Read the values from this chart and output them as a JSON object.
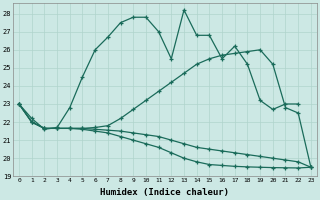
{
  "xlabel": "Humidex (Indice chaleur)",
  "bg_color": "#cce8e4",
  "line_color": "#1a6b5a",
  "grid_color": "#b0d4cc",
  "xlim": [
    -0.5,
    23.5
  ],
  "ylim": [
    19,
    28.6
  ],
  "yticks": [
    19,
    20,
    21,
    22,
    23,
    24,
    25,
    26,
    27,
    28
  ],
  "xticks": [
    0,
    1,
    2,
    3,
    4,
    5,
    6,
    7,
    8,
    9,
    10,
    11,
    12,
    13,
    14,
    15,
    16,
    17,
    18,
    19,
    20,
    21,
    22,
    23
  ],
  "line1_x": [
    0,
    1,
    2,
    3,
    4,
    5,
    6,
    7,
    8,
    9,
    10,
    11,
    12,
    13,
    14,
    15,
    16,
    17,
    18,
    19,
    20,
    21,
    22
  ],
  "line1_y": [
    23.0,
    22.2,
    21.6,
    21.7,
    22.8,
    24.5,
    26.0,
    26.7,
    27.5,
    27.8,
    27.8,
    27.0,
    25.5,
    28.2,
    26.8,
    26.8,
    25.5,
    26.2,
    25.2,
    23.2,
    22.7,
    23.0,
    23.0
  ],
  "line2_x": [
    0,
    1,
    2,
    3,
    4,
    5,
    6,
    7,
    8,
    9,
    10,
    11,
    12,
    13,
    14,
    15,
    16,
    17,
    18,
    19,
    20,
    21,
    22,
    23
  ],
  "line2_y": [
    23.0,
    22.0,
    21.65,
    21.65,
    21.65,
    21.65,
    21.7,
    21.8,
    22.2,
    22.7,
    23.2,
    23.7,
    24.2,
    24.7,
    25.2,
    25.5,
    25.7,
    25.8,
    25.9,
    26.0,
    25.2,
    22.8,
    22.5,
    19.5
  ],
  "line3_x": [
    0,
    1,
    2,
    3,
    4,
    5,
    6,
    7,
    8,
    9,
    10,
    11,
    12,
    13,
    14,
    15,
    16,
    17,
    18,
    19,
    20,
    21,
    22,
    23
  ],
  "line3_y": [
    23.0,
    22.0,
    21.65,
    21.65,
    21.65,
    21.65,
    21.6,
    21.55,
    21.5,
    21.4,
    21.3,
    21.2,
    21.0,
    20.8,
    20.6,
    20.5,
    20.4,
    20.3,
    20.2,
    20.1,
    20.0,
    19.9,
    19.8,
    19.5
  ],
  "line4_x": [
    0,
    1,
    2,
    3,
    4,
    5,
    6,
    7,
    8,
    9,
    10,
    11,
    12,
    13,
    14,
    15,
    16,
    17,
    18,
    19,
    20,
    21,
    22,
    23
  ],
  "line4_y": [
    23.0,
    22.0,
    21.65,
    21.65,
    21.65,
    21.6,
    21.5,
    21.4,
    21.2,
    21.0,
    20.8,
    20.6,
    20.3,
    20.0,
    19.8,
    19.65,
    19.6,
    19.55,
    19.52,
    19.5,
    19.48,
    19.47,
    19.46,
    19.5
  ]
}
